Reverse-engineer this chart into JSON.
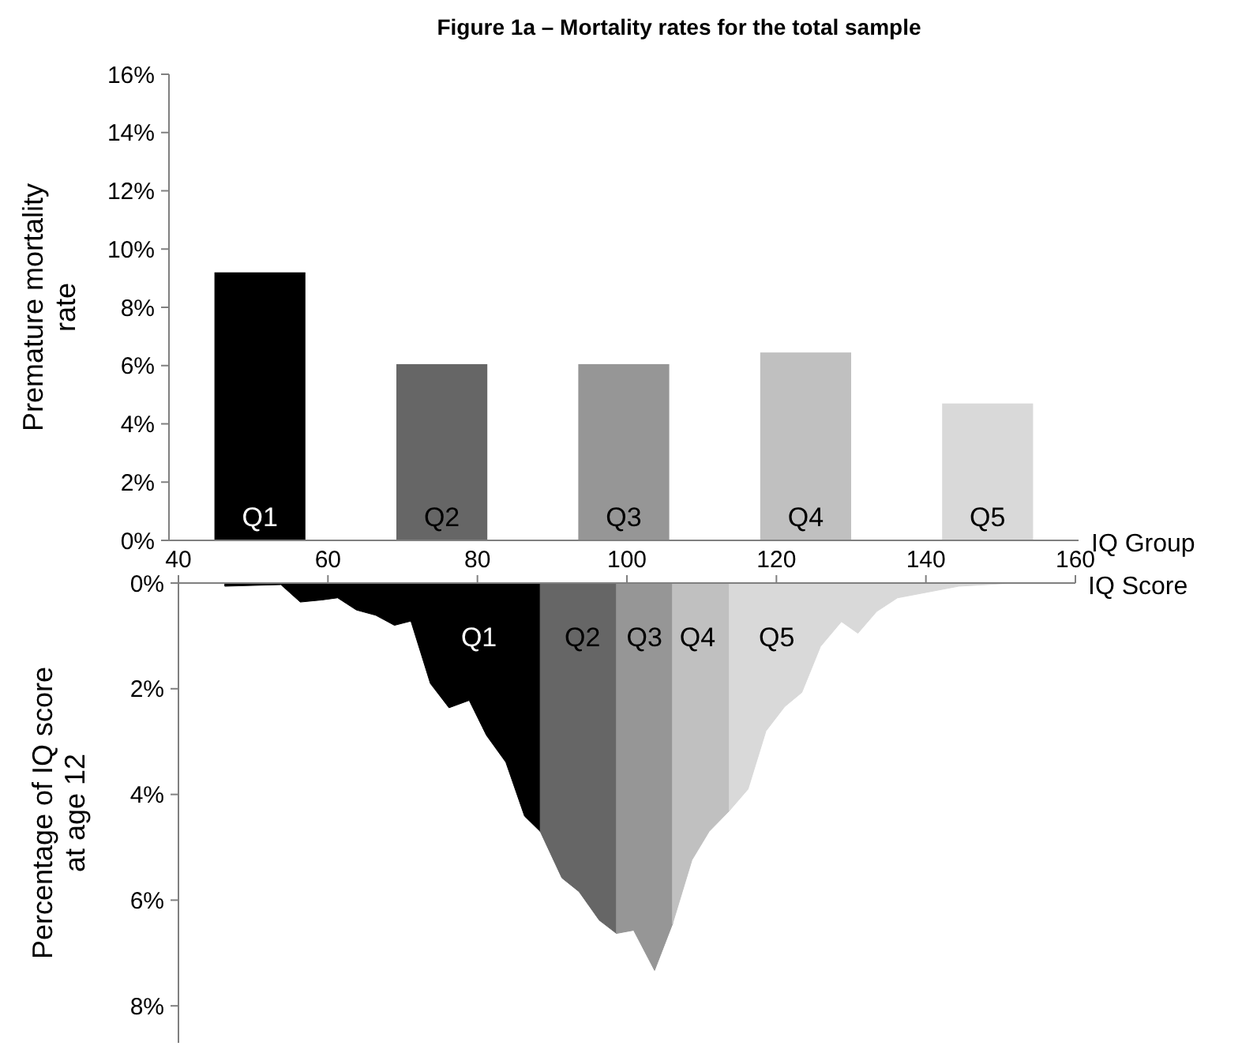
{
  "chart_data": [
    {
      "type": "bar",
      "title": "Figure 1a – Mortality rates for the total sample",
      "xlabel": "IQ Group",
      "ylabel": "Premature mortality rate",
      "categories": [
        "Q1",
        "Q2",
        "Q3",
        "Q4",
        "Q5"
      ],
      "values": [
        9.2,
        6.05,
        6.05,
        6.45,
        4.7
      ],
      "colors": [
        "#000000",
        "#666666",
        "#969696",
        "#c0c0c0",
        "#d9d9d9"
      ],
      "ylim": [
        0,
        16
      ],
      "yticks": [
        {
          "value": 0,
          "label": "0%"
        },
        {
          "value": 2,
          "label": "2%"
        },
        {
          "value": 4,
          "label": "4%"
        },
        {
          "value": 6,
          "label": "6%"
        },
        {
          "value": 8,
          "label": "8%"
        },
        {
          "value": 10,
          "label": "10%"
        },
        {
          "value": 12,
          "label": "12%"
        },
        {
          "value": 14,
          "label": "14%"
        },
        {
          "value": 16,
          "label": "16%"
        }
      ]
    },
    {
      "type": "area",
      "xlabel": "IQ Score",
      "ylabel": "Percentage of IQ score at age 12",
      "xlim": [
        40,
        160
      ],
      "xticks": [
        40,
        60,
        80,
        100,
        120,
        140,
        160
      ],
      "ylim": [
        8.7,
        0
      ],
      "yticks": [
        {
          "value": 0,
          "label": "0%"
        },
        {
          "value": 2,
          "label": "2%"
        },
        {
          "value": 4,
          "label": "4%"
        },
        {
          "value": 6,
          "label": "6%"
        },
        {
          "value": 8,
          "label": "8%"
        }
      ],
      "series": [
        {
          "name": "Q1",
          "color": "#000000",
          "x": [
            46.2,
            53.7,
            56.3,
            59.2,
            61.3,
            63.8,
            66.4,
            68.9,
            71.1,
            73.7,
            76.2,
            78.9,
            81.2,
            83.8,
            86.3,
            88.4
          ],
          "values": [
            0.06,
            0.03,
            0.36,
            0.32,
            0.28,
            0.51,
            0.61,
            0.8,
            0.72,
            1.9,
            2.36,
            2.22,
            2.88,
            3.39,
            4.41,
            4.7
          ]
        },
        {
          "name": "Q2",
          "color": "#666666",
          "x": [
            88.4,
            91.3,
            93.6,
            96.3,
            98.6
          ],
          "values": [
            4.7,
            5.58,
            5.84,
            6.38,
            6.63
          ]
        },
        {
          "name": "Q3",
          "color": "#969696",
          "x": [
            98.6,
            100.9,
            103.7,
            106.1
          ],
          "values": [
            6.63,
            6.57,
            7.33,
            6.45
          ]
        },
        {
          "name": "Q4",
          "color": "#c0c0c0",
          "x": [
            106.1,
            108.7,
            111.0,
            113.7
          ],
          "values": [
            6.45,
            5.24,
            4.7,
            4.31
          ]
        },
        {
          "name": "Q5",
          "color": "#d9d9d9",
          "x": [
            113.7,
            116.2,
            118.6,
            121.1,
            123.4,
            125.9,
            128.7,
            130.9,
            133.4,
            136.2,
            144.4,
            151.8
          ],
          "values": [
            4.31,
            3.9,
            2.8,
            2.34,
            2.07,
            1.2,
            0.73,
            0.95,
            0.54,
            0.28,
            0.06,
            0
          ]
        }
      ]
    }
  ]
}
